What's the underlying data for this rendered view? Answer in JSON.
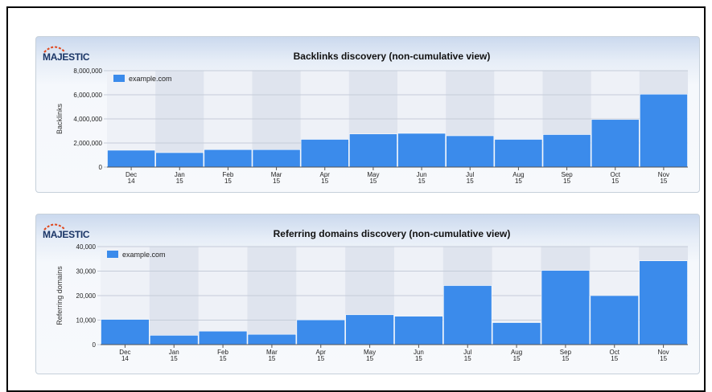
{
  "logo_text": "MAJESTIC",
  "chart_data": [
    {
      "type": "bar",
      "title": "Backlinks discovery (non-cumulative view)",
      "ylabel": "Backlinks",
      "xlabel": "",
      "ylim": [
        0,
        8000000
      ],
      "yticks": [
        0,
        2000000,
        4000000,
        6000000,
        8000000
      ],
      "ytick_labels": [
        "0",
        "2,000,000",
        "4,000,000",
        "6,000,000",
        "8,000,000"
      ],
      "categories": [
        "Dec 14",
        "Jan 15",
        "Feb 15",
        "Mar 15",
        "Apr 15",
        "May 15",
        "Jun 15",
        "Jul 15",
        "Aug 15",
        "Sep 15",
        "Oct 15",
        "Nov 15"
      ],
      "category_lines": [
        [
          "Dec",
          "14"
        ],
        [
          "Jan",
          "15"
        ],
        [
          "Feb",
          "15"
        ],
        [
          "Mar",
          "15"
        ],
        [
          "Apr",
          "15"
        ],
        [
          "May",
          "15"
        ],
        [
          "Jun",
          "15"
        ],
        [
          "Jul",
          "15"
        ],
        [
          "Aug",
          "15"
        ],
        [
          "Sep",
          "15"
        ],
        [
          "Oct",
          "15"
        ],
        [
          "Nov",
          "15"
        ]
      ],
      "series": [
        {
          "name": "example.com",
          "values": [
            1400000,
            1200000,
            1450000,
            1450000,
            2300000,
            2750000,
            2800000,
            2600000,
            2300000,
            2700000,
            3950000,
            6050000
          ]
        }
      ],
      "legend": "top-left",
      "grid": true,
      "color": "#3b8beb"
    },
    {
      "type": "bar",
      "title": "Referring domains discovery (non-cumulative view)",
      "ylabel": "Referring domains",
      "xlabel": "",
      "ylim": [
        0,
        40000
      ],
      "yticks": [
        0,
        10000,
        20000,
        30000,
        40000
      ],
      "ytick_labels": [
        "0",
        "10,000",
        "20,000",
        "30,000",
        "40,000"
      ],
      "categories": [
        "Dec 14",
        "Jan 15",
        "Feb 15",
        "Mar 15",
        "Apr 15",
        "May 15",
        "Jun 15",
        "Jul 15",
        "Aug 15",
        "Sep 15",
        "Oct 15",
        "Nov 15"
      ],
      "category_lines": [
        [
          "Dec",
          "14"
        ],
        [
          "Jan",
          "15"
        ],
        [
          "Feb",
          "15"
        ],
        [
          "Mar",
          "15"
        ],
        [
          "Apr",
          "15"
        ],
        [
          "May",
          "15"
        ],
        [
          "Jun",
          "15"
        ],
        [
          "Jul",
          "15"
        ],
        [
          "Aug",
          "15"
        ],
        [
          "Sep",
          "15"
        ],
        [
          "Oct",
          "15"
        ],
        [
          "Nov",
          "15"
        ]
      ],
      "series": [
        {
          "name": "example.com",
          "values": [
            10300,
            3800,
            5500,
            4200,
            10100,
            12200,
            11600,
            24100,
            9000,
            30300,
            20000,
            34200
          ]
        }
      ],
      "legend": "top-left",
      "grid": true,
      "color": "#3b8beb"
    }
  ]
}
